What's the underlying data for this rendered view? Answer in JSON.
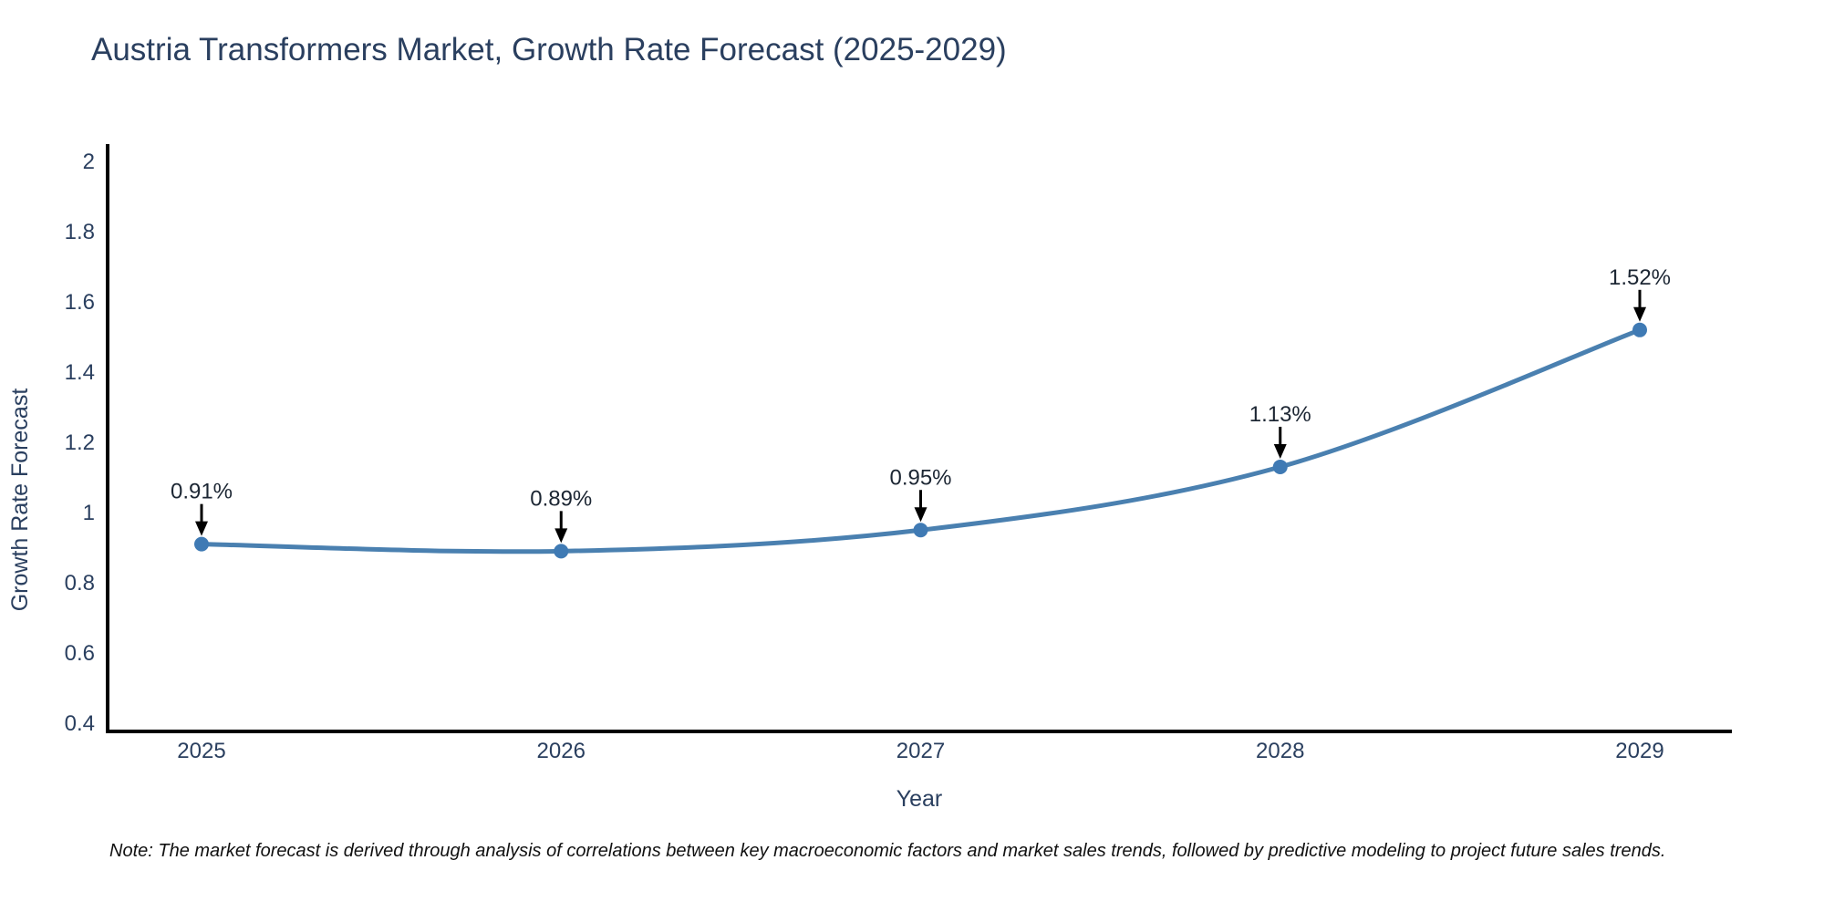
{
  "chart_data": {
    "type": "line",
    "line_shape": "spline",
    "markers": true,
    "grid": false,
    "legend": false,
    "title": "Austria Transformers Market, Growth Rate Forecast (2025-2029)",
    "xlabel": "Year",
    "ylabel": "Growth Rate Forecast",
    "categories": [
      2025,
      2026,
      2027,
      2028,
      2029
    ],
    "values": [
      0.91,
      0.89,
      0.95,
      1.13,
      1.52
    ],
    "point_labels": [
      "0.91%",
      "0.89%",
      "0.95%",
      "1.13%",
      "1.52%"
    ],
    "ylim": [
      0.4,
      2
    ],
    "yticks": [
      0.4,
      0.6,
      0.8,
      1,
      1.2,
      1.4,
      1.6,
      1.8,
      2
    ],
    "note": "Note: The market forecast is derived through analysis of correlations between key macroeconomic factors and market sales trends, followed by predictive modeling to project future sales trends."
  },
  "colors": {
    "line": "#4a80b0",
    "marker": "#3f7ab4",
    "axis": "#000000",
    "arrow": "#000000",
    "text": "#2a3f5f"
  }
}
